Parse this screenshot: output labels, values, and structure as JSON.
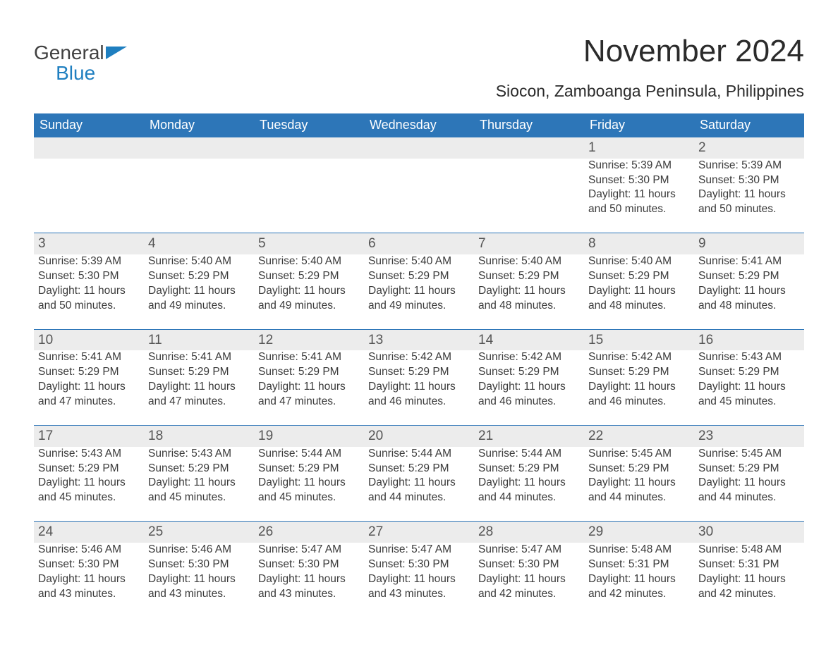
{
  "brand": {
    "word1": "General",
    "word2": "Blue"
  },
  "title": "November 2024",
  "location": "Siocon, Zamboanga Peninsula, Philippines",
  "colors": {
    "header_bg": "#2d76b8",
    "header_text": "#ffffff",
    "daynum_bg": "#ececec",
    "daynum_border": "#2d76b8",
    "body_text": "#3a3a3a",
    "brand_blue": "#1f7fc0",
    "brand_dark": "#404040",
    "page_bg": "#ffffff"
  },
  "typography": {
    "title_fontsize": 44,
    "location_fontsize": 23,
    "dayheader_fontsize": 18,
    "daynum_fontsize": 19,
    "cell_fontsize": 15.5
  },
  "layout": {
    "columns": 7,
    "rows": 5,
    "first_weekday": "Sunday"
  },
  "day_headers": [
    "Sunday",
    "Monday",
    "Tuesday",
    "Wednesday",
    "Thursday",
    "Friday",
    "Saturday"
  ],
  "weeks": [
    [
      null,
      null,
      null,
      null,
      null,
      {
        "n": "1",
        "sunrise": "Sunrise: 5:39 AM",
        "sunset": "Sunset: 5:30 PM",
        "day1": "Daylight: 11 hours",
        "day2": "and 50 minutes."
      },
      {
        "n": "2",
        "sunrise": "Sunrise: 5:39 AM",
        "sunset": "Sunset: 5:30 PM",
        "day1": "Daylight: 11 hours",
        "day2": "and 50 minutes."
      }
    ],
    [
      {
        "n": "3",
        "sunrise": "Sunrise: 5:39 AM",
        "sunset": "Sunset: 5:30 PM",
        "day1": "Daylight: 11 hours",
        "day2": "and 50 minutes."
      },
      {
        "n": "4",
        "sunrise": "Sunrise: 5:40 AM",
        "sunset": "Sunset: 5:29 PM",
        "day1": "Daylight: 11 hours",
        "day2": "and 49 minutes."
      },
      {
        "n": "5",
        "sunrise": "Sunrise: 5:40 AM",
        "sunset": "Sunset: 5:29 PM",
        "day1": "Daylight: 11 hours",
        "day2": "and 49 minutes."
      },
      {
        "n": "6",
        "sunrise": "Sunrise: 5:40 AM",
        "sunset": "Sunset: 5:29 PM",
        "day1": "Daylight: 11 hours",
        "day2": "and 49 minutes."
      },
      {
        "n": "7",
        "sunrise": "Sunrise: 5:40 AM",
        "sunset": "Sunset: 5:29 PM",
        "day1": "Daylight: 11 hours",
        "day2": "and 48 minutes."
      },
      {
        "n": "8",
        "sunrise": "Sunrise: 5:40 AM",
        "sunset": "Sunset: 5:29 PM",
        "day1": "Daylight: 11 hours",
        "day2": "and 48 minutes."
      },
      {
        "n": "9",
        "sunrise": "Sunrise: 5:41 AM",
        "sunset": "Sunset: 5:29 PM",
        "day1": "Daylight: 11 hours",
        "day2": "and 48 minutes."
      }
    ],
    [
      {
        "n": "10",
        "sunrise": "Sunrise: 5:41 AM",
        "sunset": "Sunset: 5:29 PM",
        "day1": "Daylight: 11 hours",
        "day2": "and 47 minutes."
      },
      {
        "n": "11",
        "sunrise": "Sunrise: 5:41 AM",
        "sunset": "Sunset: 5:29 PM",
        "day1": "Daylight: 11 hours",
        "day2": "and 47 minutes."
      },
      {
        "n": "12",
        "sunrise": "Sunrise: 5:41 AM",
        "sunset": "Sunset: 5:29 PM",
        "day1": "Daylight: 11 hours",
        "day2": "and 47 minutes."
      },
      {
        "n": "13",
        "sunrise": "Sunrise: 5:42 AM",
        "sunset": "Sunset: 5:29 PM",
        "day1": "Daylight: 11 hours",
        "day2": "and 46 minutes."
      },
      {
        "n": "14",
        "sunrise": "Sunrise: 5:42 AM",
        "sunset": "Sunset: 5:29 PM",
        "day1": "Daylight: 11 hours",
        "day2": "and 46 minutes."
      },
      {
        "n": "15",
        "sunrise": "Sunrise: 5:42 AM",
        "sunset": "Sunset: 5:29 PM",
        "day1": "Daylight: 11 hours",
        "day2": "and 46 minutes."
      },
      {
        "n": "16",
        "sunrise": "Sunrise: 5:43 AM",
        "sunset": "Sunset: 5:29 PM",
        "day1": "Daylight: 11 hours",
        "day2": "and 45 minutes."
      }
    ],
    [
      {
        "n": "17",
        "sunrise": "Sunrise: 5:43 AM",
        "sunset": "Sunset: 5:29 PM",
        "day1": "Daylight: 11 hours",
        "day2": "and 45 minutes."
      },
      {
        "n": "18",
        "sunrise": "Sunrise: 5:43 AM",
        "sunset": "Sunset: 5:29 PM",
        "day1": "Daylight: 11 hours",
        "day2": "and 45 minutes."
      },
      {
        "n": "19",
        "sunrise": "Sunrise: 5:44 AM",
        "sunset": "Sunset: 5:29 PM",
        "day1": "Daylight: 11 hours",
        "day2": "and 45 minutes."
      },
      {
        "n": "20",
        "sunrise": "Sunrise: 5:44 AM",
        "sunset": "Sunset: 5:29 PM",
        "day1": "Daylight: 11 hours",
        "day2": "and 44 minutes."
      },
      {
        "n": "21",
        "sunrise": "Sunrise: 5:44 AM",
        "sunset": "Sunset: 5:29 PM",
        "day1": "Daylight: 11 hours",
        "day2": "and 44 minutes."
      },
      {
        "n": "22",
        "sunrise": "Sunrise: 5:45 AM",
        "sunset": "Sunset: 5:29 PM",
        "day1": "Daylight: 11 hours",
        "day2": "and 44 minutes."
      },
      {
        "n": "23",
        "sunrise": "Sunrise: 5:45 AM",
        "sunset": "Sunset: 5:29 PM",
        "day1": "Daylight: 11 hours",
        "day2": "and 44 minutes."
      }
    ],
    [
      {
        "n": "24",
        "sunrise": "Sunrise: 5:46 AM",
        "sunset": "Sunset: 5:30 PM",
        "day1": "Daylight: 11 hours",
        "day2": "and 43 minutes."
      },
      {
        "n": "25",
        "sunrise": "Sunrise: 5:46 AM",
        "sunset": "Sunset: 5:30 PM",
        "day1": "Daylight: 11 hours",
        "day2": "and 43 minutes."
      },
      {
        "n": "26",
        "sunrise": "Sunrise: 5:47 AM",
        "sunset": "Sunset: 5:30 PM",
        "day1": "Daylight: 11 hours",
        "day2": "and 43 minutes."
      },
      {
        "n": "27",
        "sunrise": "Sunrise: 5:47 AM",
        "sunset": "Sunset: 5:30 PM",
        "day1": "Daylight: 11 hours",
        "day2": "and 43 minutes."
      },
      {
        "n": "28",
        "sunrise": "Sunrise: 5:47 AM",
        "sunset": "Sunset: 5:30 PM",
        "day1": "Daylight: 11 hours",
        "day2": "and 42 minutes."
      },
      {
        "n": "29",
        "sunrise": "Sunrise: 5:48 AM",
        "sunset": "Sunset: 5:31 PM",
        "day1": "Daylight: 11 hours",
        "day2": "and 42 minutes."
      },
      {
        "n": "30",
        "sunrise": "Sunrise: 5:48 AM",
        "sunset": "Sunset: 5:31 PM",
        "day1": "Daylight: 11 hours",
        "day2": "and 42 minutes."
      }
    ]
  ]
}
